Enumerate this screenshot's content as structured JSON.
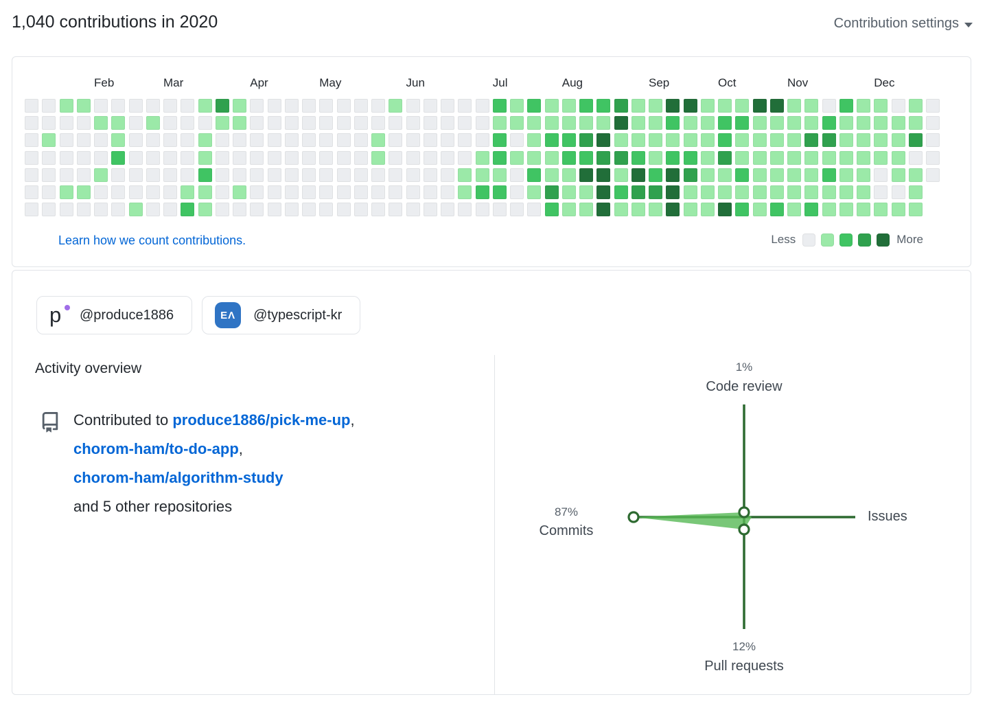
{
  "header": {
    "title": "1,040 contributions in 2020",
    "settings_label": "Contribution settings"
  },
  "calendar_footer": {
    "link_label": "Learn how we count contributions.",
    "less_label": "Less",
    "more_label": "More"
  },
  "orgs": [
    {
      "handle": "@produce1886",
      "icon": "produce1886-logo",
      "icon_text": "p",
      "icon_dot_color": "#a06ee8"
    },
    {
      "handle": "@typescript-kr",
      "icon": "typescript-kr-logo",
      "icon_text": "EΛ",
      "icon_bg_color": "#2f74c4"
    }
  ],
  "activity": {
    "heading": "Activity overview",
    "contributed_prefix": "Contributed to",
    "repos": [
      "produce1886/pick-me-up",
      "chorom-ham/to-do-app",
      "chorom-ham/algorithm-study"
    ],
    "contributed_suffix": "and 5 other repositories"
  },
  "chart_data": [
    {
      "type": "heatmap",
      "title": "2020 contribution calendar",
      "rows": 7,
      "cols": 53,
      "months": [
        {
          "label": "Feb",
          "col": 4
        },
        {
          "label": "Mar",
          "col": 8
        },
        {
          "label": "Apr",
          "col": 13
        },
        {
          "label": "May",
          "col": 17
        },
        {
          "label": "Jun",
          "col": 22
        },
        {
          "label": "Jul",
          "col": 27
        },
        {
          "label": "Aug",
          "col": 31
        },
        {
          "label": "Sep",
          "col": 36
        },
        {
          "label": "Oct",
          "col": 40
        },
        {
          "label": "Nov",
          "col": 44
        },
        {
          "label": "Dec",
          "col": 49
        }
      ],
      "levels": [
        "00110000001310000000010000021211223114411144110211010",
        "00001101000110000000000000011111114112112211112111110",
        "01000100001000000000100000020122341111112111133111130",
        "00000200001000000000100000121112233212213111111111100",
        "00001000002000000000000001110211441424311211112110110",
        "0011000001101000000000000122013114233411111111111001x",
        "0000001002100000000000000000002114111411421212111111x"
      ],
      "level_colors": [
        "#ebedf0",
        "#9be9a8",
        "#40c463",
        "#30a14e",
        "#216e39"
      ],
      "legend": {
        "less": "Less",
        "more": "More"
      }
    },
    {
      "type": "radar",
      "axes": [
        {
          "label": "Code review",
          "value_label": "1%",
          "value": 1
        },
        {
          "label": "Issues",
          "value_label": ""
        },
        {
          "label": "Pull requests",
          "value_label": "12%",
          "value": 12
        },
        {
          "label": "Commits",
          "value_label": "87%",
          "value": 87
        }
      ],
      "axis_color": "#2d6a30",
      "fill_color": "#57b956"
    }
  ],
  "colors": {
    "card_border": "#e1e4e8",
    "link_blue": "#0366d6",
    "text_primary": "#24292f",
    "text_secondary": "#57606a"
  }
}
